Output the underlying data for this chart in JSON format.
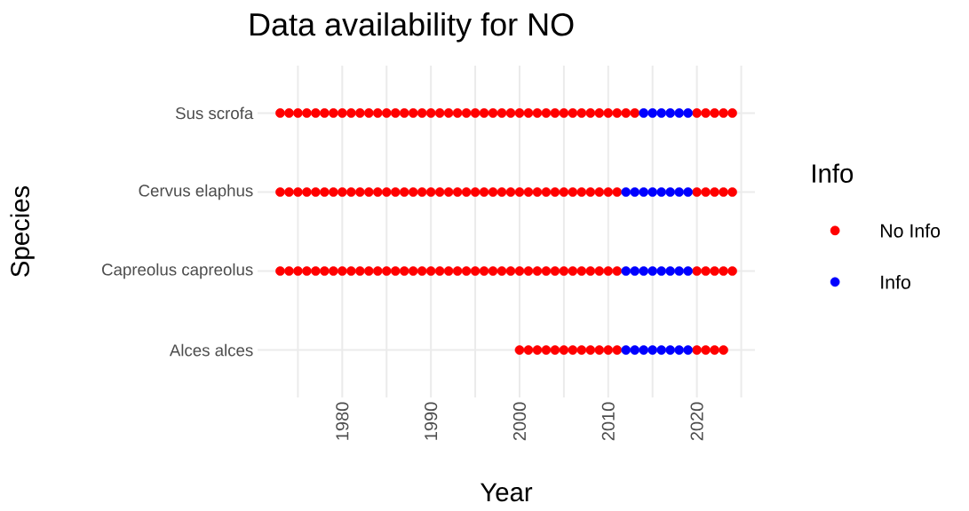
{
  "chart_data": {
    "type": "scatter",
    "title": "Data availability for NO",
    "xlabel": "Year",
    "ylabel": "Species",
    "legend_title": "Info",
    "orientation": "horizontal",
    "categories": [
      "Sus scrofa",
      "Cervus elaphus",
      "Capreolus capreolus",
      "Alces alces"
    ],
    "series": [
      {
        "name": "No Info",
        "color": "#ff0000",
        "values": [
          1973,
          1973,
          1973,
          null
        ]
      },
      {
        "color": "#ff0000",
        "values": [
          1974,
          1974,
          1974,
          null
        ]
      },
      {
        "color": "#ff0000",
        "values": [
          1975,
          1975,
          1975,
          null
        ]
      },
      {
        "color": "#ff0000",
        "values": [
          1976,
          1976,
          1976,
          null
        ]
      },
      {
        "color": "#ff0000",
        "values": [
          1977,
          1977,
          1977,
          null
        ]
      },
      {
        "color": "#ff0000",
        "values": [
          1978,
          1978,
          1978,
          null
        ]
      },
      {
        "color": "#ff0000",
        "values": [
          1979,
          1979,
          1979,
          null
        ]
      },
      {
        "color": "#ff0000",
        "values": [
          1980,
          1980,
          1980,
          null
        ]
      },
      {
        "color": "#ff0000",
        "values": [
          1981,
          1981,
          1981,
          null
        ]
      },
      {
        "color": "#ff0000",
        "values": [
          1982,
          1982,
          1982,
          null
        ]
      },
      {
        "color": "#ff0000",
        "values": [
          1983,
          1983,
          1983,
          null
        ]
      },
      {
        "color": "#ff0000",
        "values": [
          1984,
          1984,
          1984,
          null
        ]
      },
      {
        "color": "#ff0000",
        "values": [
          1985,
          1985,
          1985,
          null
        ]
      },
      {
        "color": "#ff0000",
        "values": [
          1986,
          1986,
          1986,
          null
        ]
      },
      {
        "color": "#ff0000",
        "values": [
          1987,
          1987,
          1987,
          null
        ]
      },
      {
        "color": "#ff0000",
        "values": [
          1988,
          1988,
          1988,
          null
        ]
      },
      {
        "color": "#ff0000",
        "values": [
          1989,
          1989,
          1989,
          null
        ]
      },
      {
        "color": "#ff0000",
        "values": [
          1990,
          1990,
          1990,
          null
        ]
      },
      {
        "color": "#ff0000",
        "values": [
          1991,
          1991,
          1991,
          null
        ]
      },
      {
        "color": "#ff0000",
        "values": [
          1992,
          1992,
          1992,
          null
        ]
      },
      {
        "color": "#ff0000",
        "values": [
          1993,
          1993,
          1993,
          null
        ]
      },
      {
        "color": "#ff0000",
        "values": [
          1994,
          1994,
          1994,
          null
        ]
      },
      {
        "color": "#ff0000",
        "values": [
          1995,
          1995,
          1995,
          null
        ]
      },
      {
        "color": "#ff0000",
        "values": [
          1996,
          1996,
          1996,
          null
        ]
      },
      {
        "color": "#ff0000",
        "values": [
          1997,
          1997,
          1997,
          null
        ]
      },
      {
        "color": "#ff0000",
        "values": [
          1998,
          1998,
          1998,
          null
        ]
      },
      {
        "color": "#ff0000",
        "values": [
          1999,
          1999,
          1999,
          null
        ]
      },
      {
        "color": "#ff0000",
        "values": [
          2000,
          2000,
          2000,
          2000
        ]
      },
      {
        "color": "#ff0000",
        "values": [
          2001,
          2001,
          2001,
          2001
        ]
      },
      {
        "color": "#ff0000",
        "values": [
          2002,
          2002,
          2002,
          2002
        ]
      },
      {
        "color": "#ff0000",
        "values": [
          2003,
          2003,
          2003,
          2003
        ]
      },
      {
        "color": "#ff0000",
        "values": [
          2004,
          2004,
          2004,
          2004
        ]
      },
      {
        "color": "#ff0000",
        "values": [
          2005,
          2005,
          2005,
          2005
        ]
      },
      {
        "color": "#ff0000",
        "values": [
          2006,
          2006,
          2006,
          2006
        ]
      },
      {
        "color": "#ff0000",
        "values": [
          2007,
          2007,
          2007,
          2007
        ]
      },
      {
        "color": "#ff0000",
        "values": [
          2008,
          2008,
          2008,
          2008
        ]
      },
      {
        "color": "#ff0000",
        "values": [
          2009,
          2009,
          2009,
          2009
        ]
      },
      {
        "color": "#ff0000",
        "values": [
          2010,
          2010,
          2010,
          2010
        ]
      },
      {
        "color": "#ff0000",
        "values": [
          2011,
          2011,
          2011,
          2011
        ]
      },
      {
        "color": "#ff0000",
        "values": [
          2012,
          null,
          null,
          null
        ]
      },
      {
        "color": "#ff0000",
        "values": [
          2013,
          null,
          null,
          null
        ]
      },
      {
        "color": "#ff0000",
        "values": [
          2020,
          2020,
          2020,
          2020
        ]
      },
      {
        "color": "#ff0000",
        "values": [
          2021,
          2021,
          2021,
          2021
        ]
      },
      {
        "color": "#ff0000",
        "values": [
          2022,
          2022,
          2022,
          2022
        ]
      },
      {
        "color": "#ff0000",
        "values": [
          2023,
          2023,
          2023,
          2023
        ]
      },
      {
        "color": "#ff0000",
        "values": [
          2024,
          2024,
          2024,
          null
        ]
      },
      {
        "name": "Info",
        "color": "#0000ff",
        "values": [
          null,
          2012,
          2012,
          2012
        ]
      },
      {
        "color": "#0000ff",
        "values": [
          null,
          2013,
          2013,
          2013
        ]
      },
      {
        "color": "#0000ff",
        "values": [
          2014,
          2014,
          2014,
          2014
        ]
      },
      {
        "color": "#0000ff",
        "values": [
          2015,
          2015,
          2015,
          2015
        ]
      },
      {
        "color": "#0000ff",
        "values": [
          2016,
          2016,
          2016,
          2016
        ]
      },
      {
        "color": "#0000ff",
        "values": [
          2017,
          2017,
          2017,
          2017
        ]
      },
      {
        "color": "#0000ff",
        "values": [
          2018,
          2018,
          2018,
          2018
        ]
      },
      {
        "color": "#0000ff",
        "values": [
          2019,
          2019,
          2019,
          2019
        ]
      }
    ],
    "xlim": [
      1970.45,
      2026.55
    ],
    "xticks": [
      {
        "value": 1975,
        "label": null
      },
      1980,
      {
        "value": 1985,
        "label": null
      },
      1990,
      {
        "value": 1995,
        "label": null
      },
      2000,
      {
        "value": 2005,
        "label": null
      },
      2010,
      {
        "value": 2015,
        "label": null
      },
      2020,
      {
        "value": 2025,
        "label": null
      }
    ],
    "grid": true,
    "legend": "right",
    "marker": "circle"
  }
}
